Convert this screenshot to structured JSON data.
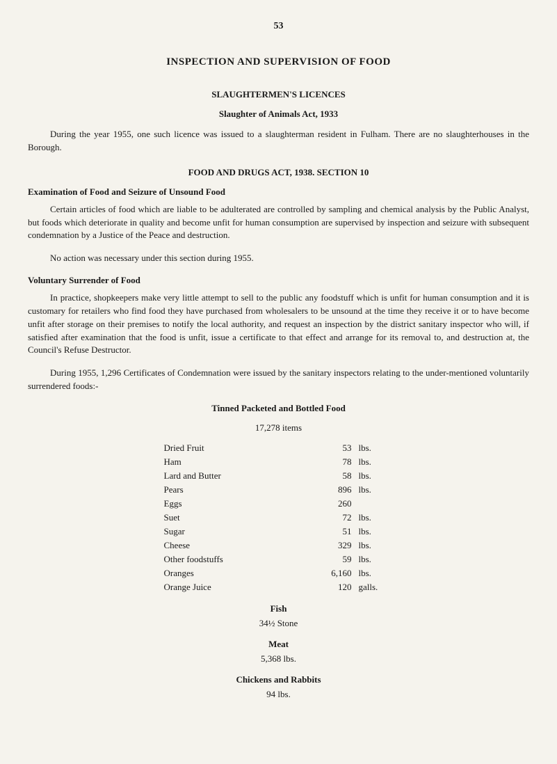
{
  "page_number": "53",
  "main_title": "INSPECTION AND SUPERVISION OF FOOD",
  "licences": {
    "heading": "SLAUGHTERMEN'S LICENCES",
    "subheading": "Slaughter of Animals Act, 1933",
    "para": "During the year 1955, one such licence was issued to a slaughterman resident in Fulham. There are no slaughterhouses in the Borough."
  },
  "food_drugs": {
    "heading": "FOOD AND DRUGS ACT, 1938. SECTION 10"
  },
  "examination": {
    "heading": "Examination of Food and Seizure of Unsound Food",
    "para1": "Certain articles of food which are liable to be adulterated are controlled by sampling and chemical analysis by the Public Analyst, but foods which deteriorate in quality and become unfit for human consumption are supervised by inspection and seizure with subsequent condemnation by a Justice of the Peace and destruction.",
    "para2": "No action was necessary under this section during 1955."
  },
  "voluntary": {
    "heading": "Voluntary Surrender of Food",
    "para1": "In practice, shopkeepers make very little attempt to sell to the public any foodstuff which is unfit for human consumption and it is customary for retailers who find food they have purchased from wholesalers to be unsound at the time they receive it or to have become unfit after storage on their premises to notify the local authority, and request an inspection by the district sanitary inspector who will, if satisfied after examination that the food is unfit, issue a certificate to that effect and arrange for its removal to, and destruction at, the Council's Refuse Destructor.",
    "para2": "During 1955, 1,296 Certificates of Condemnation were issued by the sanitary inspectors relating to the under-mentioned voluntarily surrendered foods:-"
  },
  "tinned": {
    "heading": "Tinned Packeted and Bottled Food",
    "count_label": "17,278 items",
    "items": [
      {
        "label": "Dried Fruit",
        "value": "53",
        "unit": "lbs."
      },
      {
        "label": "Ham",
        "value": "78",
        "unit": "lbs."
      },
      {
        "label": "Lard and Butter",
        "value": "58",
        "unit": "lbs."
      },
      {
        "label": "Pears",
        "value": "896",
        "unit": "lbs."
      },
      {
        "label": "Eggs",
        "value": "260",
        "unit": ""
      },
      {
        "label": "Suet",
        "value": "72",
        "unit": "lbs."
      },
      {
        "label": "Sugar",
        "value": "51",
        "unit": "lbs."
      },
      {
        "label": "Cheese",
        "value": "329",
        "unit": "lbs."
      },
      {
        "label": "Other foodstuffs",
        "value": "59",
        "unit": "lbs."
      },
      {
        "label": "Oranges",
        "value": "6,160",
        "unit": "lbs."
      },
      {
        "label": "Orange Juice",
        "value": "120",
        "unit": "galls."
      }
    ]
  },
  "fish": {
    "heading": "Fish",
    "value": "34½ Stone"
  },
  "meat": {
    "heading": "Meat",
    "value": "5,368 lbs."
  },
  "chickens": {
    "heading": "Chickens and Rabbits",
    "value": "94 lbs."
  }
}
